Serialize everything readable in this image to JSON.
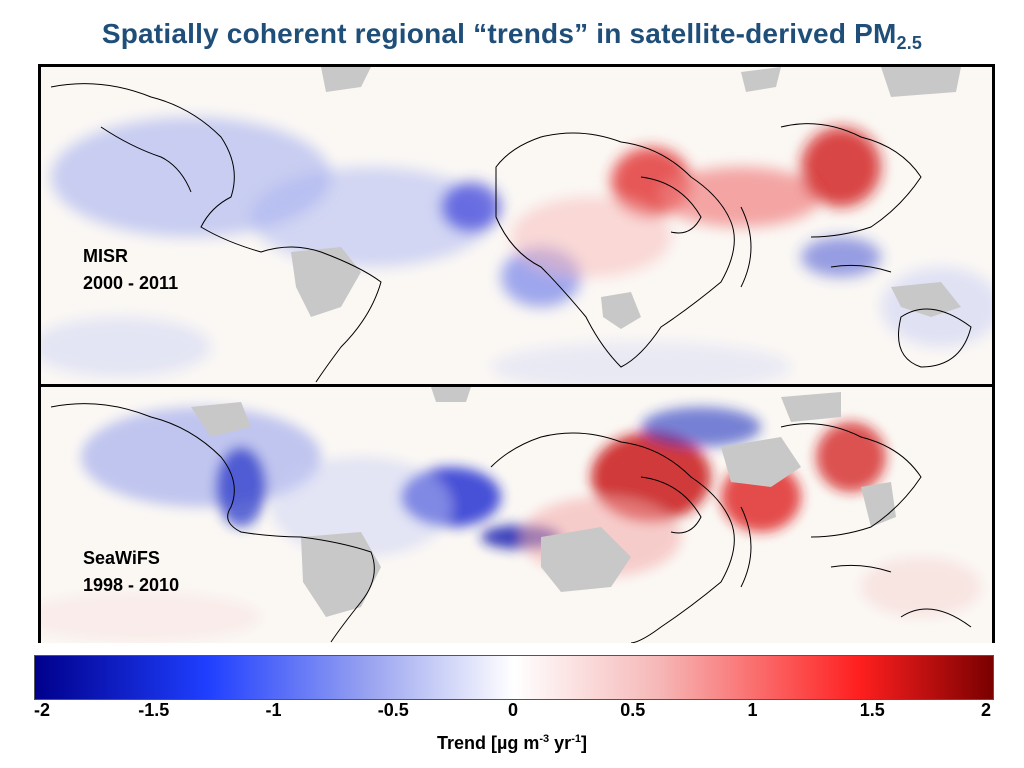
{
  "title": {
    "main": "Spatially coherent regional “trends” in satellite-derived PM",
    "subscript": "2.5"
  },
  "panels": [
    {
      "name": "MISR",
      "years": "2000 - 2011"
    },
    {
      "name": "SeaWiFS",
      "years": "1998 - 2010"
    }
  ],
  "colorbar": {
    "min": -2,
    "max": 2,
    "tick_labels": [
      "-2",
      "-1.5",
      "-1",
      "-0.5",
      "0",
      "0.5",
      "1",
      "1.5",
      "2"
    ],
    "label_prefix": "Trend [µg m",
    "label_exp1": "-3",
    "label_mid": " yr",
    "label_exp2": "-1",
    "label_suffix": "]",
    "colors": {
      "negative_max": "#00008b",
      "negative": "#1f3fff",
      "zero": "#ffffff",
      "positive": "#ff1f1f",
      "positive_max": "#7a0000"
    }
  },
  "map_colors": {
    "no_data": "#c8c8c8",
    "background": "#fbf8f4",
    "coast": "#000000"
  }
}
